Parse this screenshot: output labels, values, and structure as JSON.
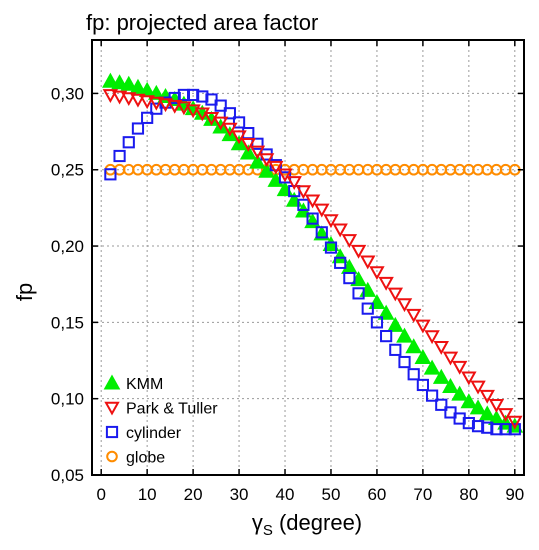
{
  "chart_data": {
    "type": "scatter",
    "title": "fp: projected area factor",
    "xlabel": "γS (degree)",
    "xlabel_parts": {
      "symbol": "γ",
      "subscript": "S",
      "rest": " (degree)"
    },
    "ylabel": "fp",
    "xlim": [
      -2,
      92
    ],
    "ylim": [
      0.05,
      0.335
    ],
    "x_ticks": [
      0,
      10,
      20,
      30,
      40,
      50,
      60,
      70,
      80,
      90
    ],
    "x_tick_labels": [
      "0",
      "10",
      "20",
      "30",
      "40",
      "50",
      "60",
      "70",
      "80",
      "90"
    ],
    "y_ticks": [
      0.05,
      0.1,
      0.15,
      0.2,
      0.25,
      0.3
    ],
    "y_tick_labels": [
      "0,05",
      "0,10",
      "0,15",
      "0,20",
      "0,25",
      "0,30"
    ],
    "grid": true,
    "legend_position": "bottom-left",
    "x": [
      2,
      4,
      6,
      8,
      10,
      12,
      14,
      16,
      18,
      20,
      22,
      24,
      26,
      28,
      30,
      32,
      34,
      36,
      38,
      40,
      42,
      44,
      46,
      48,
      50,
      52,
      54,
      56,
      58,
      60,
      62,
      64,
      66,
      68,
      70,
      72,
      74,
      76,
      78,
      80,
      82,
      84,
      86,
      88,
      90
    ],
    "series": [
      {
        "name": "KMM",
        "marker": "triangle-up",
        "filled": true,
        "color": "#00ee00",
        "values": [
          0.308,
          0.307,
          0.306,
          0.304,
          0.302,
          0.3,
          0.298,
          0.296,
          0.293,
          0.29,
          0.287,
          0.283,
          0.278,
          0.273,
          0.267,
          0.261,
          0.255,
          0.249,
          0.243,
          0.237,
          0.23,
          0.223,
          0.216,
          0.208,
          0.201,
          0.193,
          0.186,
          0.178,
          0.171,
          0.163,
          0.156,
          0.148,
          0.141,
          0.134,
          0.127,
          0.12,
          0.114,
          0.108,
          0.103,
          0.098,
          0.094,
          0.09,
          0.087,
          0.084,
          0.082
        ]
      },
      {
        "name": "Park & Tuller",
        "marker": "triangle-down",
        "filled": false,
        "color": "#ee1111",
        "values": [
          0.299,
          0.298,
          0.297,
          0.296,
          0.295,
          0.294,
          0.293,
          0.292,
          0.291,
          0.289,
          0.287,
          0.284,
          0.281,
          0.277,
          0.272,
          0.267,
          0.262,
          0.257,
          0.252,
          0.247,
          0.242,
          0.236,
          0.23,
          0.224,
          0.217,
          0.211,
          0.204,
          0.197,
          0.19,
          0.183,
          0.176,
          0.169,
          0.162,
          0.155,
          0.148,
          0.141,
          0.134,
          0.127,
          0.121,
          0.114,
          0.108,
          0.102,
          0.096,
          0.09,
          0.085
        ]
      },
      {
        "name": "cylinder",
        "marker": "square",
        "filled": false,
        "color": "#1a1aee",
        "values": [
          0.247,
          0.259,
          0.268,
          0.277,
          0.284,
          0.29,
          0.294,
          0.297,
          0.299,
          0.299,
          0.298,
          0.296,
          0.292,
          0.287,
          0.281,
          0.274,
          0.267,
          0.26,
          0.253,
          0.245,
          0.236,
          0.227,
          0.218,
          0.209,
          0.199,
          0.189,
          0.179,
          0.169,
          0.159,
          0.15,
          0.141,
          0.132,
          0.124,
          0.116,
          0.109,
          0.102,
          0.096,
          0.091,
          0.087,
          0.084,
          0.082,
          0.081,
          0.08,
          0.08,
          0.08
        ]
      },
      {
        "name": "globe",
        "marker": "circle",
        "filled": false,
        "color": "#ff8c00",
        "values": [
          0.25,
          0.25,
          0.25,
          0.25,
          0.25,
          0.25,
          0.25,
          0.25,
          0.25,
          0.25,
          0.25,
          0.25,
          0.25,
          0.25,
          0.25,
          0.25,
          0.25,
          0.25,
          0.25,
          0.25,
          0.25,
          0.25,
          0.25,
          0.25,
          0.25,
          0.25,
          0.25,
          0.25,
          0.25,
          0.25,
          0.25,
          0.25,
          0.25,
          0.25,
          0.25,
          0.25,
          0.25,
          0.25,
          0.25,
          0.25,
          0.25,
          0.25,
          0.25,
          0.25,
          0.25
        ]
      }
    ]
  }
}
